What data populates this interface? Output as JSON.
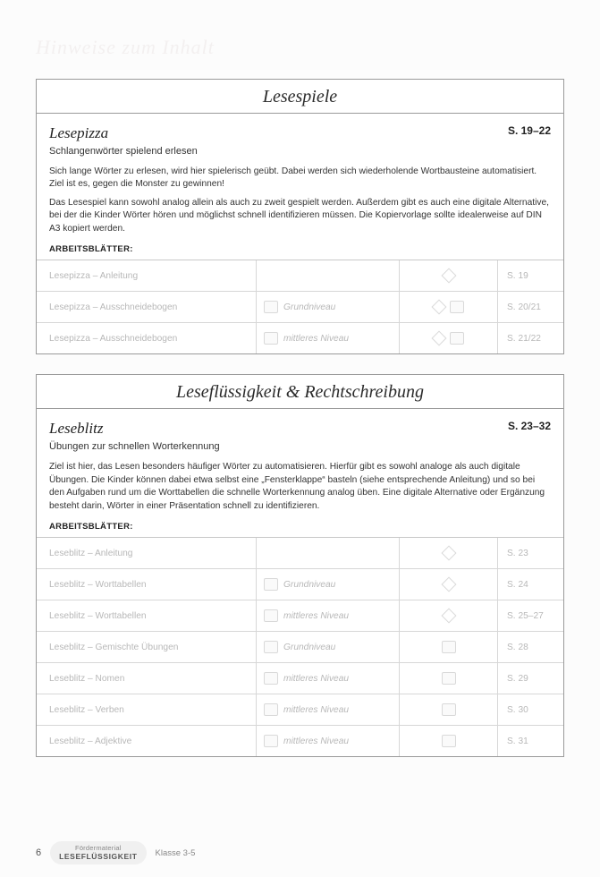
{
  "ghostTitle": "Hinweise zum Inhalt",
  "sections": [
    {
      "header": "Lesespiele",
      "lesson": {
        "title": "Lesepizza",
        "pages": "S. 19–22",
        "subtitle": "Schlangenwörter spielend erlesen",
        "p1": "Sich lange Wörter zu erlesen, wird hier spielerisch geübt. Dabei werden sich wiederholende Wortbausteine automatisiert. Ziel ist es, gegen die Monster zu gewinnen!",
        "p2": "Das Lesespiel kann sowohl analog allein als auch zu zweit gespielt werden. Außerdem gibt es auch eine digitale Alternative, bei der die Kinder Wörter hören und möglichst schnell identifizieren müssen. Die Kopiervorlage sollte idealerweise auf DIN A3 kopiert werden."
      },
      "abLabel": "ARBEITSBLÄTTER:",
      "rows": [
        {
          "name": "Lesepizza – Anleitung",
          "level": "",
          "icons": "d",
          "page": "S. 19"
        },
        {
          "name": "Lesepizza – Ausschneidebogen",
          "level": "Grundniveau",
          "icons": "dbr",
          "page": "S. 20/21"
        },
        {
          "name": "Lesepizza – Ausschneidebogen",
          "level": "mittleres Niveau",
          "icons": "dbr",
          "page": "S. 21/22"
        }
      ]
    },
    {
      "header": "Leseflüssigkeit & Rechtschreibung",
      "lesson": {
        "title": "Leseblitz",
        "pages": "S. 23–32",
        "subtitle": "Übungen zur schnellen Worterkennung",
        "p1": "Ziel ist hier, das Lesen besonders häufiger Wörter zu automatisieren. Hierfür gibt es sowohl analoge als auch digitale Übungen. Die Kinder können dabei etwa selbst eine „Fensterklappe“ basteln (siehe entsprechende Anleitung) und so bei den Aufgaben rund um die Worttabellen die schnelle Worterkennung analog üben. Eine digitale Alternative oder Ergänzung besteht darin, Wörter in einer Präsentation schnell zu identifizieren.",
        "p2": ""
      },
      "abLabel": "ARBEITSBLÄTTER:",
      "rows": [
        {
          "name": "Leseblitz – Anleitung",
          "level": "",
          "icons": "d",
          "page": "S. 23"
        },
        {
          "name": "Leseblitz – Worttabellen",
          "level": "Grundniveau",
          "icons": "d",
          "page": "S. 24"
        },
        {
          "name": "Leseblitz – Worttabellen",
          "level": "mittleres Niveau",
          "icons": "d",
          "page": "S. 25–27"
        },
        {
          "name": "Leseblitz – Gemischte Übungen",
          "level": "Grundniveau",
          "icons": "r",
          "page": "S. 28"
        },
        {
          "name": "Leseblitz – Nomen",
          "level": "mittleres Niveau",
          "icons": "r",
          "page": "S. 29"
        },
        {
          "name": "Leseblitz – Verben",
          "level": "mittleres Niveau",
          "icons": "r",
          "page": "S. 30"
        },
        {
          "name": "Leseblitz – Adjektive",
          "level": "mittleres Niveau",
          "icons": "r",
          "page": "S. 31"
        }
      ]
    }
  ],
  "footer": {
    "pagenum": "6",
    "badge1": "Fördermaterial",
    "badge2": "LESEFLÜSSIGKEIT",
    "grade": "Klasse 3-5"
  }
}
